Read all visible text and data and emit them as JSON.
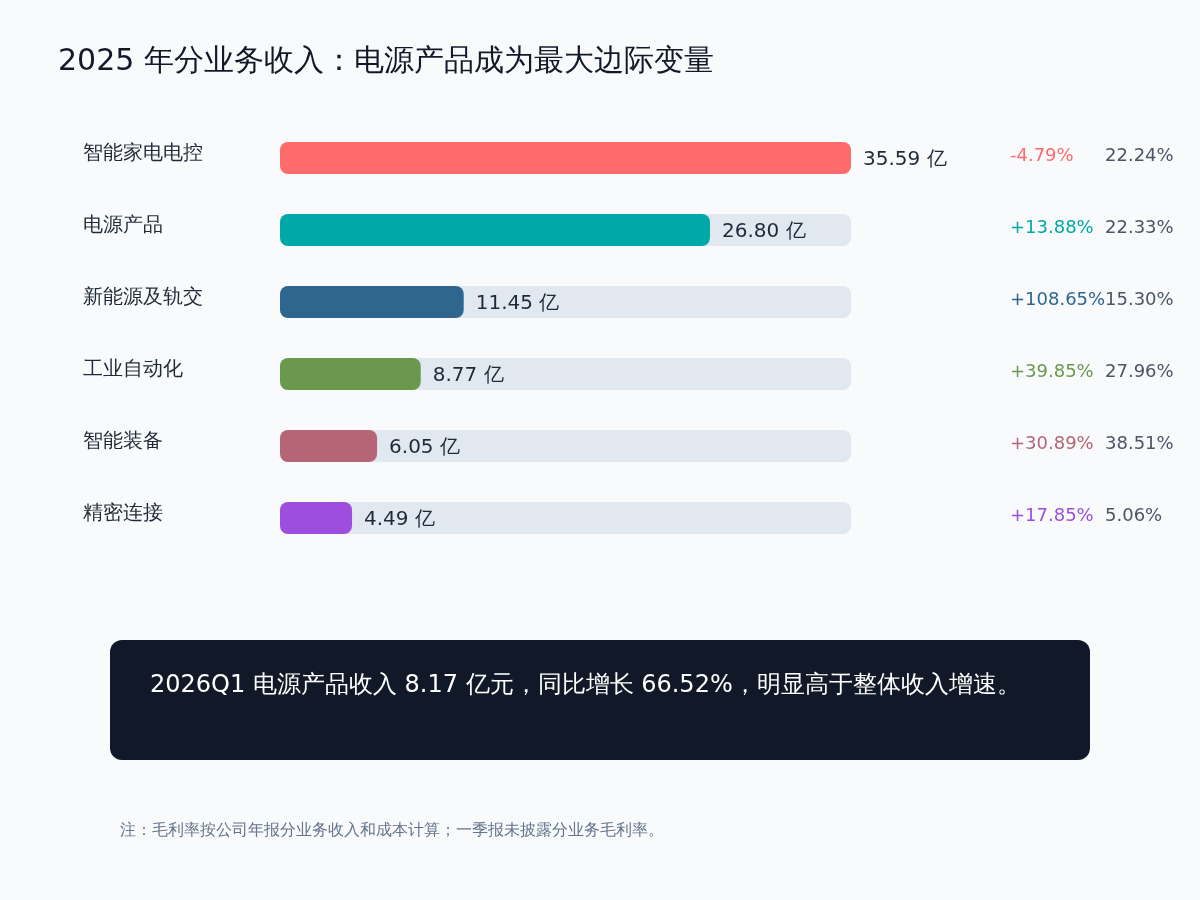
{
  "chart_data": {
    "type": "bar",
    "orientation": "horizontal",
    "title": "2025 年分业务收入：电源产品成为最大边际变量",
    "categories": [
      "智能家电电控",
      "电源产品",
      "新能源及轨交",
      "工业自动化",
      "智能装备",
      "精密连接"
    ],
    "values": [
      35.59,
      26.8,
      11.45,
      8.77,
      6.05,
      4.49
    ],
    "colors": [
      "#ff6b6b",
      "#00a8a8",
      "#2e6690",
      "#6a994e",
      "#b56576",
      "#9d4edd"
    ],
    "value_labels": [
      "35.59 亿",
      "26.80 亿",
      "11.45 亿",
      "8.77 亿",
      "6.05 亿",
      "4.49 亿"
    ],
    "tick_labels": false,
    "annotations": [
      "-4.79%",
      "22.24%",
      "+13.88%",
      "22.33%",
      "+108.65%",
      "15.30%",
      "+39.85%",
      "27.96%",
      "+30.89%",
      "38.51%",
      "+17.85%",
      "5.06%",
      "2026Q1 电源产品收入 8.17 亿元，同比增长 66.52%，明显高于整体收入增速。",
      "注：毛利率按公司年报分业务收入和成本计算；一季报未披露分业务毛利率。"
    ]
  }
}
